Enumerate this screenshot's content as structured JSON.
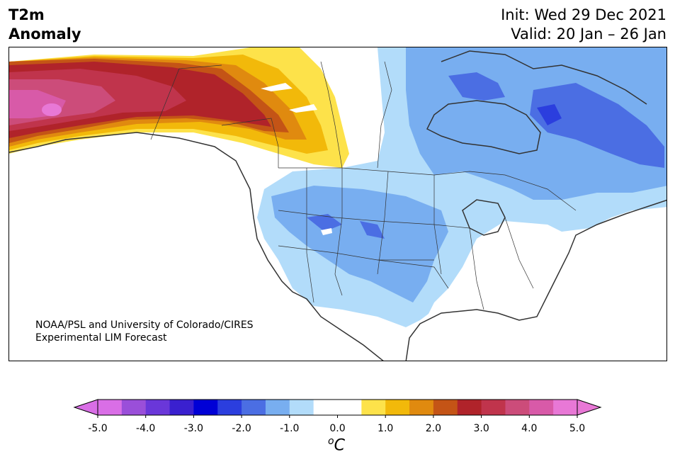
{
  "title": {
    "variable": "T2m",
    "subtitle": "Anomaly",
    "init": "Init: Wed 29 Dec 2021",
    "valid": "Valid: 20 Jan – 26 Jan"
  },
  "credit": {
    "line1": "NOAA/PSL and University of Colorado/CIRES",
    "line2": "Experimental LIM Forecast"
  },
  "colorbar": {
    "ticks": [
      "-5.0",
      "-4.0",
      "-3.0",
      "-2.0",
      "-1.0",
      "0.0",
      "1.0",
      "2.0",
      "3.0",
      "4.0",
      "5.0"
    ],
    "unit_base": "C",
    "unit_sup": "o",
    "colors": [
      "#d96ee6",
      "#9a4fd9",
      "#6a37d9",
      "#3a20cf",
      "#0000d6",
      "#2b3ede",
      "#4b6ee3",
      "#78aef0",
      "#b2dcfa",
      "#ffffff",
      "#ffffff",
      "#fde24a",
      "#f2b90a",
      "#e08a0f",
      "#c45416",
      "#b0232a",
      "#c0344c",
      "#cc4c7a",
      "#d85aa8",
      "#e878d6"
    ],
    "extend_low": "#d96ee6",
    "extend_high": "#e878d6"
  },
  "palette": {
    "light_blue": "#b2dcfa",
    "mid_blue": "#78aef0",
    "blue": "#4b6ee3",
    "deep_blue": "#2b3ede",
    "yellow": "#fde24a",
    "gold": "#f2b90a",
    "orange": "#e08a0f",
    "dark_orange": "#c45416",
    "red": "#b0232a",
    "crimson": "#c0344c",
    "rose": "#cc4c7a",
    "pink": "#d85aa8",
    "magenta": "#e878d6"
  }
}
